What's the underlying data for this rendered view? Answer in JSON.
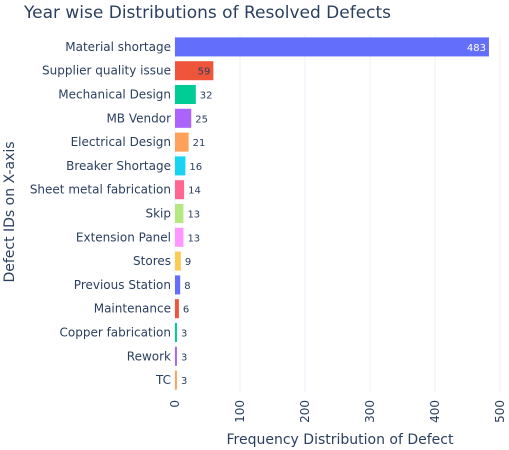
{
  "chart_data": {
    "type": "bar",
    "orientation": "horizontal",
    "title": "Year wise Distributions of Resolved Defects",
    "xlabel": "Frequency Distribution of Defect",
    "ylabel": "Defect IDs on X-axis",
    "xlim": [
      0,
      500
    ],
    "xticks": [
      0,
      100,
      200,
      300,
      400,
      500
    ],
    "grid": true,
    "categories": [
      "Material shortage",
      "Supplier quality issue",
      "Mechanical Design",
      "MB Vendor",
      "Electrical Design",
      "Breaker Shortage",
      "Sheet metal fabrication",
      "Skip",
      "Extension Panel",
      "Stores",
      "Previous Station",
      "Maintenance",
      "Copper fabrication",
      "Rework",
      "TC"
    ],
    "values": [
      483,
      59,
      32,
      25,
      21,
      16,
      14,
      13,
      13,
      9,
      8,
      6,
      3,
      3,
      3
    ],
    "colors": [
      "#636efa",
      "#ef553b",
      "#00cc96",
      "#ab63fa",
      "#ffa15a",
      "#19d3f3",
      "#ff6692",
      "#b6e880",
      "#ff97ff",
      "#fecb52",
      "#636efa",
      "#ef553b",
      "#00cc96",
      "#ab63fa",
      "#ffa15a"
    ]
  }
}
